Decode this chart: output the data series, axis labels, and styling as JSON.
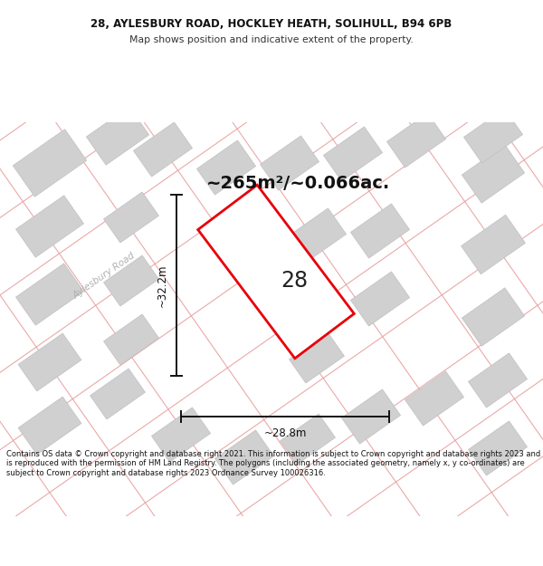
{
  "title_line1": "28, AYLESBURY ROAD, HOCKLEY HEATH, SOLIHULL, B94 6PB",
  "title_line2": "Map shows position and indicative extent of the property.",
  "area_text": "~265m²/~0.066ac.",
  "dim_width": "~28.8m",
  "dim_height": "~32.2m",
  "number_label": "28",
  "road_label": "Aylesbury Road",
  "footer": "Contains OS data © Crown copyright and database right 2021. This information is subject to Crown copyright and database rights 2023 and is reproduced with the permission of HM Land Registry. The polygons (including the associated geometry, namely x, y co-ordinates) are subject to Crown copyright and database rights 2023 Ordnance Survey 100026316.",
  "highlight_color": "#e8000a",
  "road_line_color": "#e8a0a0",
  "building_color": "#d0d0d0",
  "building_edge_color": "#c0c0c0",
  "map_bg": "#f8f8f8",
  "title_fontsize": 8.5,
  "subtitle_fontsize": 7.8,
  "area_fontsize": 14,
  "dim_fontsize": 8.5,
  "number_fontsize": 17,
  "road_label_fontsize": 7.5,
  "footer_fontsize": 6.0
}
